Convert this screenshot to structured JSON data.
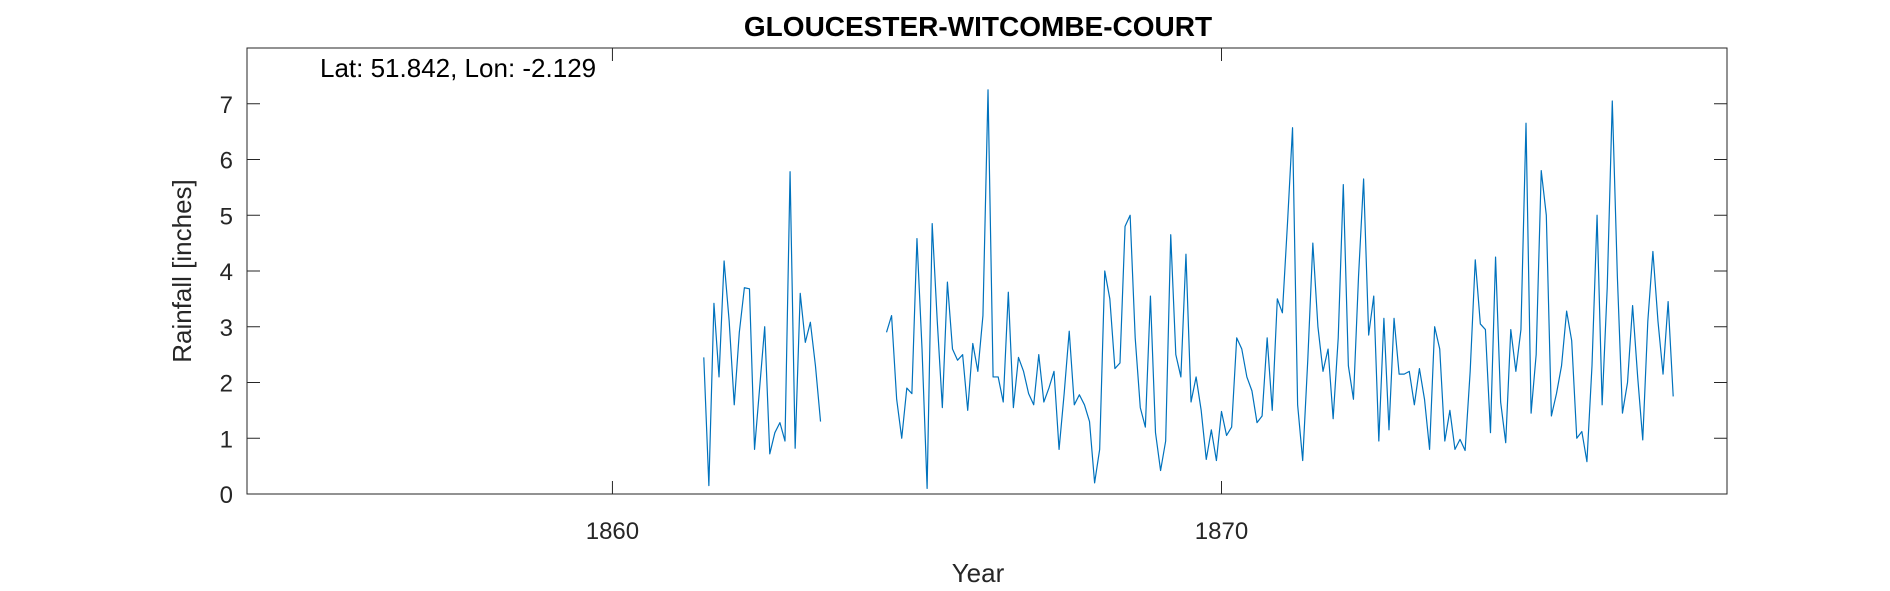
{
  "chart_data": {
    "type": "line",
    "title": "GLOUCESTER-WITCOMBE-COURT",
    "annotation": "Lat: 51.842, Lon: -2.129",
    "xlabel": "Year",
    "ylabel": "Rainfall [inches]",
    "xlim": [
      1854,
      1878.3
    ],
    "ylim": [
      0,
      8
    ],
    "xticks": [
      1860,
      1870
    ],
    "yticks": [
      0,
      1,
      2,
      3,
      4,
      5,
      6,
      7
    ],
    "grid": false,
    "line_color": "#0072BD",
    "series": [
      {
        "segments": [
          {
            "start_year": 1861.5,
            "values": [
              2.45,
              0.15,
              3.42,
              2.1,
              4.18,
              3.1,
              1.6,
              2.9,
              3.7,
              3.68,
              0.8,
              1.9,
              3.0,
              0.72,
              1.1,
              1.28,
              0.95,
              5.78,
              0.82,
              3.6,
              2.72,
              3.08,
              2.3,
              1.3
            ]
          },
          {
            "start_year": 1864.5,
            "values": [
              2.9,
              3.2,
              1.7,
              1.0,
              1.9,
              1.8,
              4.58,
              2.6,
              0.1,
              4.85,
              3.1,
              1.55,
              3.8,
              2.6,
              2.4,
              2.5,
              1.5,
              2.7,
              2.2,
              3.2,
              7.25,
              2.1,
              2.1,
              1.65,
              3.62,
              1.55,
              2.45,
              2.2,
              1.8,
              1.6,
              2.5,
              1.65,
              1.9,
              2.2,
              0.8,
              1.8,
              2.92,
              1.6,
              1.78,
              1.6,
              1.3,
              0.2,
              0.8,
              4.0,
              3.5,
              2.25,
              2.35,
              4.8,
              5.0,
              2.8,
              1.55,
              1.2,
              3.55,
              1.1,
              0.42,
              0.95,
              4.65,
              2.5,
              2.1,
              4.3,
              1.65,
              2.1,
              1.5,
              0.62,
              1.15,
              0.6,
              1.48,
              1.05,
              1.2,
              2.8,
              2.6,
              2.1,
              1.85,
              1.28,
              1.4,
              2.8,
              1.5,
              3.5,
              3.25,
              4.85,
              6.57,
              1.6,
              0.6,
              2.4,
              4.5,
              3.0,
              2.2,
              2.6,
              1.35,
              2.8,
              5.55,
              2.3,
              1.7,
              3.9,
              5.65,
              2.85,
              3.55,
              0.95,
              3.15,
              1.15,
              3.15,
              2.15,
              2.15,
              2.2,
              1.6,
              2.25,
              1.7,
              0.8,
              3.0,
              2.6,
              0.95,
              1.5,
              0.8,
              0.98,
              0.78,
              2.2,
              4.2,
              3.05,
              2.95,
              1.1,
              4.25,
              1.65,
              0.92,
              2.95,
              2.2,
              2.95,
              6.65,
              1.45,
              2.5,
              5.8,
              5.0,
              1.4,
              1.8,
              2.3,
              3.28,
              2.75,
              1.0,
              1.12,
              0.58,
              2.3,
              5.0,
              1.6,
              3.7,
              7.05,
              3.9,
              1.45,
              2.0,
              3.38,
              2.1,
              0.97,
              3.1,
              4.35,
              3.1,
              2.15,
              3.45,
              1.75
            ]
          }
        ]
      }
    ]
  }
}
